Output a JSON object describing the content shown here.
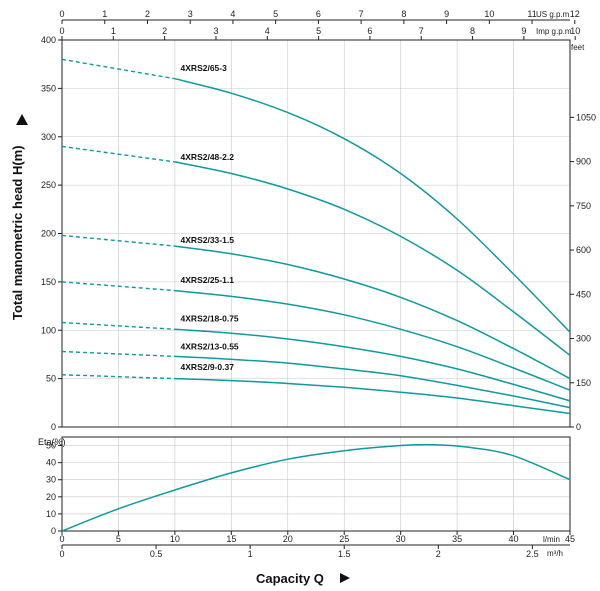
{
  "chart_data": [
    {
      "type": "line",
      "title": "",
      "xlabel": "Capacity Q",
      "ylabel": "Total manometric head H(m)",
      "ylim": [
        0,
        400
      ],
      "xlim": [
        0,
        45
      ],
      "grid": true,
      "axes": {
        "x_lmin_ticks": [
          "0",
          "5",
          "10",
          "15",
          "20",
          "25",
          "30",
          "35",
          "40",
          "45"
        ],
        "x_lmin_unit": "l/min",
        "x_m3h_ticks": [
          "0",
          "0.5",
          "1",
          "1.5",
          "2",
          "2.5"
        ],
        "x_m3h_unit": "m³/h",
        "x_usgpm_ticks": [
          "0",
          "1",
          "2",
          "3",
          "4",
          "5",
          "6",
          "7",
          "8",
          "9",
          "10",
          "11",
          "12"
        ],
        "x_usgpm_unit": "US g.p.m",
        "x_impgpm_ticks": [
          "0",
          "1",
          "2",
          "3",
          "4",
          "5",
          "6",
          "7",
          "8",
          "9",
          "10"
        ],
        "x_impgpm_unit": "Imp g.p.m",
        "y_ticks": [
          "0",
          "50",
          "100",
          "150",
          "200",
          "250",
          "300",
          "350",
          "400"
        ],
        "y_feet_unit": "feet",
        "y_feet_ticks": [
          "0",
          "150",
          "300",
          "450",
          "600",
          "750",
          "900",
          "1050"
        ]
      },
      "series": [
        {
          "name": "4XRS2/65-3",
          "label_at": [
            10.5,
            368
          ],
          "dashed": {
            "x": [
              0,
              10
            ],
            "y": [
              380,
              360
            ]
          },
          "x": [
            10,
            15,
            20,
            25,
            30,
            35,
            40,
            45
          ],
          "y": [
            360,
            345,
            325,
            298,
            262,
            215,
            158,
            98
          ]
        },
        {
          "name": "4XRS2/48-2.2",
          "label_at": [
            10.5,
            276
          ],
          "dashed": {
            "x": [
              0,
              10
            ],
            "y": [
              290,
              274
            ]
          },
          "x": [
            10,
            15,
            20,
            25,
            30,
            35,
            40,
            45
          ],
          "y": [
            274,
            262,
            246,
            225,
            197,
            162,
            119,
            74
          ]
        },
        {
          "name": "4XRS2/33-1.5",
          "label_at": [
            10.5,
            190
          ],
          "dashed": {
            "x": [
              0,
              10
            ],
            "y": [
              198,
              187
            ]
          },
          "x": [
            10,
            15,
            20,
            25,
            30,
            35,
            40,
            45
          ],
          "y": [
            187,
            179,
            168,
            153,
            134,
            110,
            81,
            50
          ]
        },
        {
          "name": "4XRS2/25-1.1",
          "label_at": [
            10.5,
            149
          ],
          "dashed": {
            "x": [
              0,
              10
            ],
            "y": [
              150,
              141
            ]
          },
          "x": [
            10,
            15,
            20,
            25,
            30,
            35,
            40,
            45
          ],
          "y": [
            141,
            135,
            127,
            116,
            101,
            83,
            61,
            38
          ]
        },
        {
          "name": "4XRS2/18-0.75",
          "label_at": [
            10.5,
            109
          ],
          "dashed": {
            "x": [
              0,
              10
            ],
            "y": [
              108,
              101
            ]
          },
          "x": [
            10,
            15,
            20,
            25,
            30,
            35,
            40,
            45
          ],
          "y": [
            101,
            97,
            91,
            83,
            73,
            60,
            44,
            27
          ]
        },
        {
          "name": "4XRS2/13-0.55",
          "label_at": [
            10.5,
            80
          ],
          "dashed": {
            "x": [
              0,
              10
            ],
            "y": [
              78,
              73
            ]
          },
          "x": [
            10,
            15,
            20,
            25,
            30,
            35,
            40,
            45
          ],
          "y": [
            73,
            70,
            66,
            60,
            53,
            43,
            32,
            20
          ]
        },
        {
          "name": "4XRS2/9-0.37",
          "label_at": [
            10.5,
            59
          ],
          "dashed": {
            "x": [
              0,
              10
            ],
            "y": [
              54,
              50
            ]
          },
          "x": [
            10,
            15,
            20,
            25,
            30,
            35,
            40,
            45
          ],
          "y": [
            50,
            48,
            45,
            41,
            36,
            30,
            22,
            14
          ]
        }
      ]
    },
    {
      "type": "line",
      "title": "",
      "ylabel": "Eta(%)",
      "ylim": [
        0,
        55
      ],
      "xlim": [
        0,
        45
      ],
      "grid": true,
      "y_ticks": [
        "0",
        "10",
        "20",
        "30",
        "40",
        "50"
      ],
      "series": [
        {
          "name": "",
          "x": [
            0,
            5,
            10,
            15,
            20,
            25,
            30,
            33,
            36,
            40,
            45
          ],
          "y": [
            0,
            13,
            24,
            34,
            42,
            47,
            50,
            50.5,
            49,
            44,
            30
          ]
        }
      ]
    }
  ],
  "colors": {
    "curve": "#0e9aa0",
    "grid": "#c8c8c8",
    "axis": "#222222",
    "arrow": "#111111"
  }
}
